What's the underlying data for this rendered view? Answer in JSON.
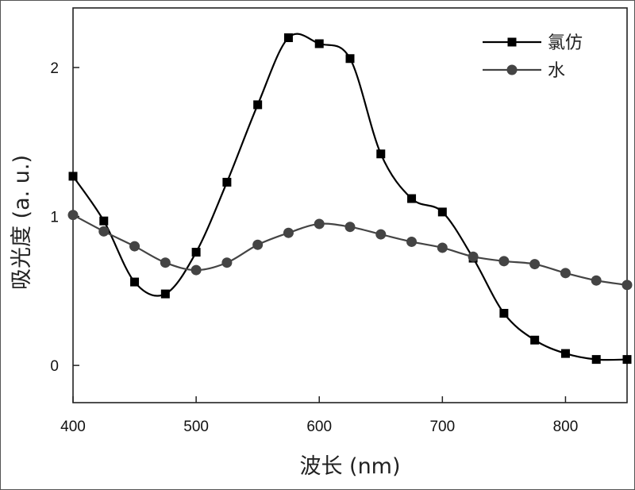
{
  "chart_data": {
    "type": "line",
    "title": "",
    "xlabel": "波长 (nm)",
    "ylabel": "吸光度 (a. u.)",
    "xlim": [
      400,
      850
    ],
    "ylim": [
      -0.25,
      2.4
    ],
    "x_ticks": [
      400,
      500,
      600,
      700,
      800
    ],
    "x_tick_labels": [
      "400",
      "500",
      "600",
      "700",
      "800"
    ],
    "y_ticks": [
      0,
      1,
      2
    ],
    "y_tick_labels": [
      "0",
      "1",
      "2"
    ],
    "grid": false,
    "legend_position": "top-right",
    "series": [
      {
        "name": "氯仿",
        "marker": "square",
        "color": "#000000",
        "x": [
          400,
          425,
          450,
          475,
          500,
          525,
          550,
          575,
          600,
          625,
          650,
          675,
          700,
          725,
          750,
          775,
          800,
          825,
          850
        ],
        "values": [
          1.27,
          0.97,
          0.56,
          0.48,
          0.76,
          1.23,
          1.75,
          2.2,
          2.16,
          2.06,
          1.42,
          1.12,
          1.03,
          0.72,
          0.35,
          0.17,
          0.08,
          0.04,
          0.04
        ]
      },
      {
        "name": "水",
        "marker": "circle",
        "color": "#444444",
        "x": [
          400,
          425,
          450,
          475,
          500,
          525,
          550,
          575,
          600,
          625,
          650,
          675,
          700,
          725,
          750,
          775,
          800,
          825,
          850
        ],
        "values": [
          1.01,
          0.9,
          0.8,
          0.69,
          0.64,
          0.69,
          0.81,
          0.89,
          0.95,
          0.93,
          0.88,
          0.83,
          0.79,
          0.73,
          0.7,
          0.68,
          0.62,
          0.57,
          0.54
        ]
      }
    ]
  }
}
